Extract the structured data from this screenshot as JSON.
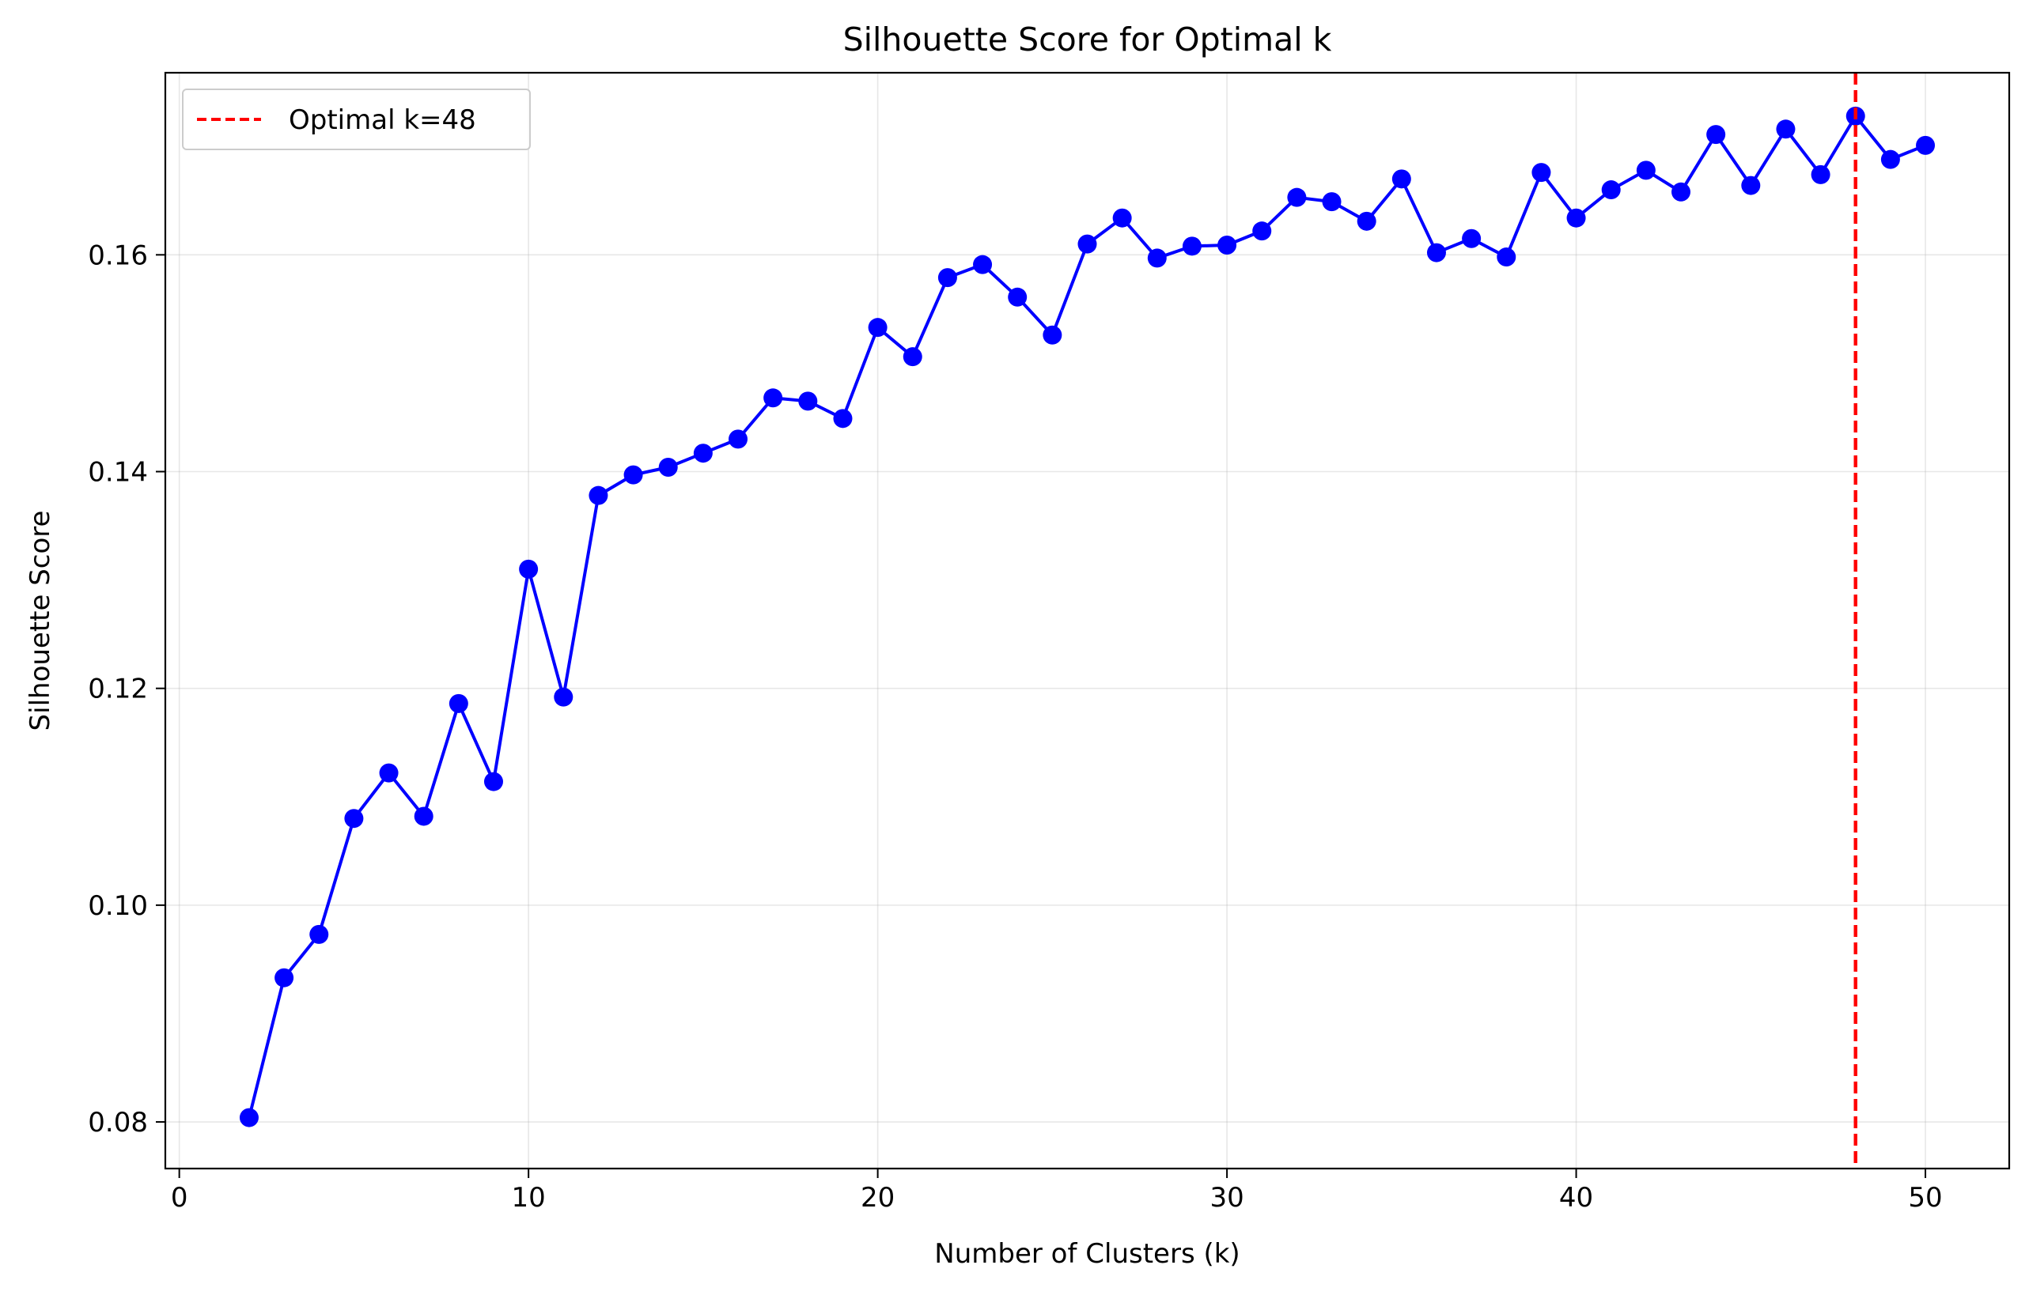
{
  "chart_data": {
    "type": "line",
    "title": "Silhouette Score for Optimal k",
    "xlabel": "Number of Clusters (k)",
    "ylabel": "Silhouette Score",
    "xlim": [
      -0.4,
      52.4
    ],
    "ylim": [
      0.0757,
      0.1768
    ],
    "x_ticks": [
      0,
      10,
      20,
      30,
      40,
      50
    ],
    "x_tick_labels": [
      "0",
      "10",
      "20",
      "30",
      "40",
      "50"
    ],
    "y_ticks": [
      0.08,
      0.1,
      0.12,
      0.14,
      0.16
    ],
    "y_tick_labels": [
      "0.08",
      "0.10",
      "0.12",
      "0.14",
      "0.16"
    ],
    "grid": true,
    "legend_position": "top-left",
    "series": [
      {
        "color": "#0000ff",
        "marker": "circle",
        "x": [
          2,
          3,
          4,
          5,
          6,
          7,
          8,
          9,
          10,
          11,
          12,
          13,
          14,
          15,
          16,
          17,
          18,
          19,
          20,
          21,
          22,
          23,
          24,
          25,
          26,
          27,
          28,
          29,
          30,
          31,
          32,
          33,
          34,
          35,
          36,
          37,
          38,
          39,
          40,
          41,
          42,
          43,
          44,
          45,
          46,
          47,
          48,
          49,
          50
        ],
        "y": [
          0.0804,
          0.0933,
          0.0973,
          0.108,
          0.1122,
          0.1082,
          0.1186,
          0.1114,
          0.131,
          0.1192,
          0.1378,
          0.1397,
          0.1404,
          0.1417,
          0.143,
          0.1468,
          0.1465,
          0.1449,
          0.1533,
          0.1506,
          0.1579,
          0.1591,
          0.1561,
          0.1526,
          0.161,
          0.1634,
          0.1597,
          0.1608,
          0.1609,
          0.1622,
          0.1653,
          0.1649,
          0.1631,
          0.167,
          0.1602,
          0.1615,
          0.1598,
          0.1676,
          0.1634,
          0.166,
          0.1678,
          0.1658,
          0.1711,
          0.1664,
          0.1716,
          0.1674,
          0.1728,
          0.1688,
          0.1701
        ]
      }
    ],
    "vline": {
      "x": 48,
      "color": "#ff0000",
      "style": "dashed",
      "label": "Optimal k=48"
    }
  }
}
